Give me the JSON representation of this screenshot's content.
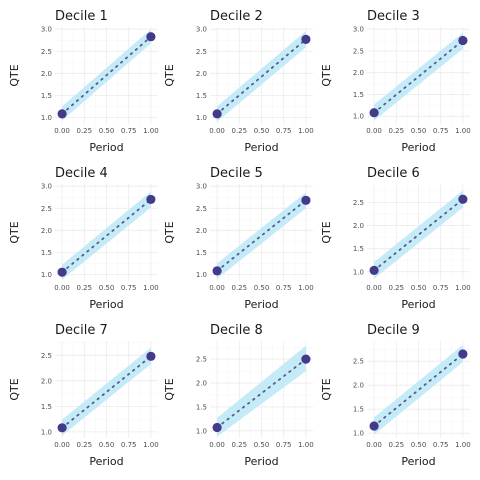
{
  "style": {
    "band_color": "#bfe8f7",
    "point_color": "#433a8a",
    "line_color": "#555e8a"
  },
  "chart_data": [
    {
      "type": "line",
      "title": "Decile 1",
      "xlabel": "Period",
      "ylabel": "QTE",
      "x": [
        0,
        1
      ],
      "values": [
        1.08,
        2.83
      ],
      "lower": [
        0.93,
        2.68
      ],
      "upper": [
        1.25,
        3.0
      ],
      "xlim": [
        -0.08,
        1.08
      ],
      "ylim": [
        0.85,
        3.05
      ],
      "xticks": [
        "0.00",
        "0.25",
        "0.50",
        "0.75",
        "1.00"
      ],
      "yticks": [
        "1.0",
        "1.5",
        "2.0",
        "2.5",
        "3.0"
      ]
    },
    {
      "type": "line",
      "title": "Decile 2",
      "xlabel": "Period",
      "ylabel": "QTE",
      "x": [
        0,
        1
      ],
      "values": [
        1.08,
        2.77
      ],
      "lower": [
        0.9,
        2.59
      ],
      "upper": [
        1.25,
        2.96
      ],
      "xlim": [
        -0.08,
        1.08
      ],
      "ylim": [
        0.85,
        3.05
      ],
      "xticks": [
        "0.00",
        "0.25",
        "0.50",
        "0.75",
        "1.00"
      ],
      "yticks": [
        "1.0",
        "1.5",
        "2.0",
        "2.5",
        "3.0"
      ]
    },
    {
      "type": "line",
      "title": "Decile 3",
      "xlabel": "Period",
      "ylabel": "QTE",
      "x": [
        0,
        1
      ],
      "values": [
        1.08,
        2.74
      ],
      "lower": [
        0.9,
        2.55
      ],
      "upper": [
        1.27,
        2.92
      ],
      "xlim": [
        -0.08,
        1.08
      ],
      "ylim": [
        0.82,
        3.05
      ],
      "xticks": [
        "0.00",
        "0.25",
        "0.50",
        "0.75",
        "1.00"
      ],
      "yticks": [
        "1.0",
        "1.5",
        "2.0",
        "2.5",
        "3.0"
      ]
    },
    {
      "type": "line",
      "title": "Decile 4",
      "xlabel": "Period",
      "ylabel": "QTE",
      "x": [
        0,
        1
      ],
      "values": [
        1.05,
        2.7
      ],
      "lower": [
        0.88,
        2.52
      ],
      "upper": [
        1.22,
        2.88
      ],
      "xlim": [
        -0.08,
        1.08
      ],
      "ylim": [
        0.85,
        3.05
      ],
      "xticks": [
        "0.00",
        "0.25",
        "0.50",
        "0.75",
        "1.00"
      ],
      "yticks": [
        "1.0",
        "1.5",
        "2.0",
        "2.5",
        "3.0"
      ]
    },
    {
      "type": "line",
      "title": "Decile 5",
      "xlabel": "Period",
      "ylabel": "QTE",
      "x": [
        0,
        1
      ],
      "values": [
        1.08,
        2.68
      ],
      "lower": [
        0.9,
        2.5
      ],
      "upper": [
        1.25,
        2.86
      ],
      "xlim": [
        -0.08,
        1.08
      ],
      "ylim": [
        0.85,
        3.05
      ],
      "xticks": [
        "0.00",
        "0.25",
        "0.50",
        "0.75",
        "1.00"
      ],
      "yticks": [
        "1.0",
        "1.5",
        "2.0",
        "2.5",
        "3.0"
      ]
    },
    {
      "type": "line",
      "title": "Decile 6",
      "xlabel": "Period",
      "ylabel": "QTE",
      "x": [
        0,
        1
      ],
      "values": [
        1.03,
        2.57
      ],
      "lower": [
        0.85,
        2.39
      ],
      "upper": [
        1.21,
        2.76
      ],
      "xlim": [
        -0.08,
        1.08
      ],
      "ylim": [
        0.8,
        2.9
      ],
      "xticks": [
        "0.00",
        "0.25",
        "0.50",
        "0.75",
        "1.00"
      ],
      "yticks": [
        "1.0",
        "1.5",
        "2.0",
        "2.5"
      ]
    },
    {
      "type": "line",
      "title": "Decile 7",
      "xlabel": "Period",
      "ylabel": "QTE",
      "x": [
        0,
        1
      ],
      "values": [
        1.08,
        2.48
      ],
      "lower": [
        0.93,
        2.33
      ],
      "upper": [
        1.24,
        2.65
      ],
      "xlim": [
        -0.08,
        1.08
      ],
      "ylim": [
        0.88,
        2.78
      ],
      "xticks": [
        "0.00",
        "0.25",
        "0.50",
        "0.75",
        "1.00"
      ],
      "yticks": [
        "1.0",
        "1.5",
        "2.0",
        "2.5"
      ]
    },
    {
      "type": "line",
      "title": "Decile 8",
      "xlabel": "Period",
      "ylabel": "QTE",
      "x": [
        0,
        1
      ],
      "values": [
        1.07,
        2.5
      ],
      "lower": [
        0.88,
        2.25
      ],
      "upper": [
        1.27,
        2.78
      ],
      "xlim": [
        -0.08,
        1.08
      ],
      "ylim": [
        0.85,
        2.88
      ],
      "xticks": [
        "0.00",
        "0.25",
        "0.50",
        "0.75",
        "1.00"
      ],
      "yticks": [
        "1.0",
        "1.5",
        "2.0",
        "2.5"
      ]
    },
    {
      "type": "line",
      "title": "Decile 9",
      "xlabel": "Period",
      "ylabel": "QTE",
      "x": [
        0,
        1
      ],
      "values": [
        1.15,
        2.65
      ],
      "lower": [
        0.97,
        2.48
      ],
      "upper": [
        1.33,
        2.84
      ],
      "xlim": [
        -0.08,
        1.08
      ],
      "ylim": [
        0.9,
        2.92
      ],
      "xticks": [
        "0.00",
        "0.25",
        "0.50",
        "0.75",
        "1.00"
      ],
      "yticks": [
        "1.0",
        "1.5",
        "2.0",
        "2.5"
      ]
    }
  ]
}
